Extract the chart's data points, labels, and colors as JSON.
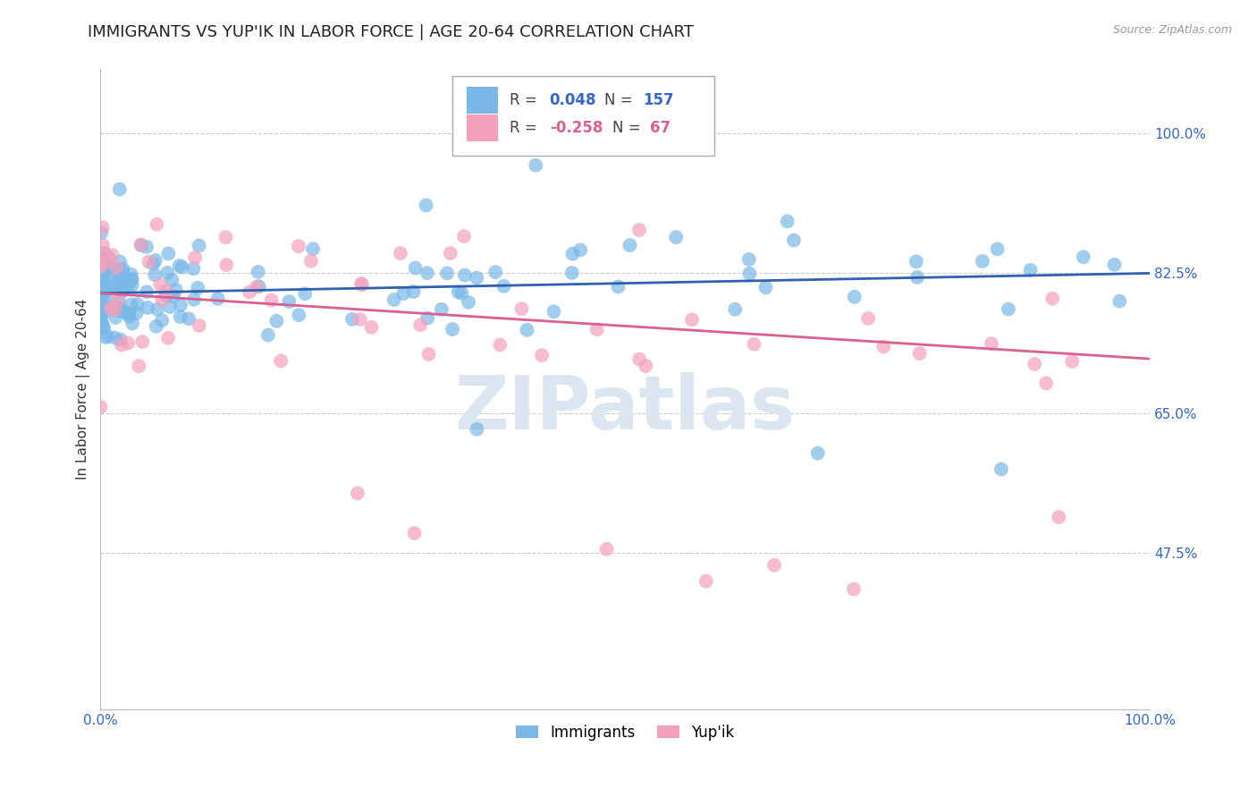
{
  "title": "IMMIGRANTS VS YUP'IK IN LABOR FORCE | AGE 20-64 CORRELATION CHART",
  "source": "Source: ZipAtlas.com",
  "ylabel": "In Labor Force | Age 20-64",
  "watermark": "ZIPatlas",
  "xlim": [
    0.0,
    1.0
  ],
  "ylim": [
    0.28,
    1.08
  ],
  "yticks": [
    0.475,
    0.65,
    0.825,
    1.0
  ],
  "ytick_labels": [
    "47.5%",
    "65.0%",
    "82.5%",
    "100.0%"
  ],
  "xticks": [
    0.0,
    1.0
  ],
  "xtick_labels": [
    "0.0%",
    "100.0%"
  ],
  "series": [
    {
      "name": "Immigrants",
      "R": 0.048,
      "N": 157,
      "color": "#7ab8e8",
      "trend_color": "#3060b0",
      "trend_start_y": 0.8,
      "trend_end_y": 0.825
    },
    {
      "name": "Yup'ik",
      "R": -0.258,
      "N": 67,
      "color": "#f5a0bb",
      "trend_color": "#d96090",
      "trend_start_y": 0.8,
      "trend_end_y": 0.718
    }
  ],
  "background_color": "#ffffff",
  "grid_color": "#cccccc",
  "title_fontsize": 13,
  "axis_label_fontsize": 11,
  "tick_fontsize": 11,
  "legend_fontsize": 12,
  "watermark_color": "#dce6f0",
  "watermark_fontsize": 60,
  "R_N_color_blue": "#3366cc",
  "R_N_color_pink": "#d96090",
  "tick_color": "#3366cc"
}
